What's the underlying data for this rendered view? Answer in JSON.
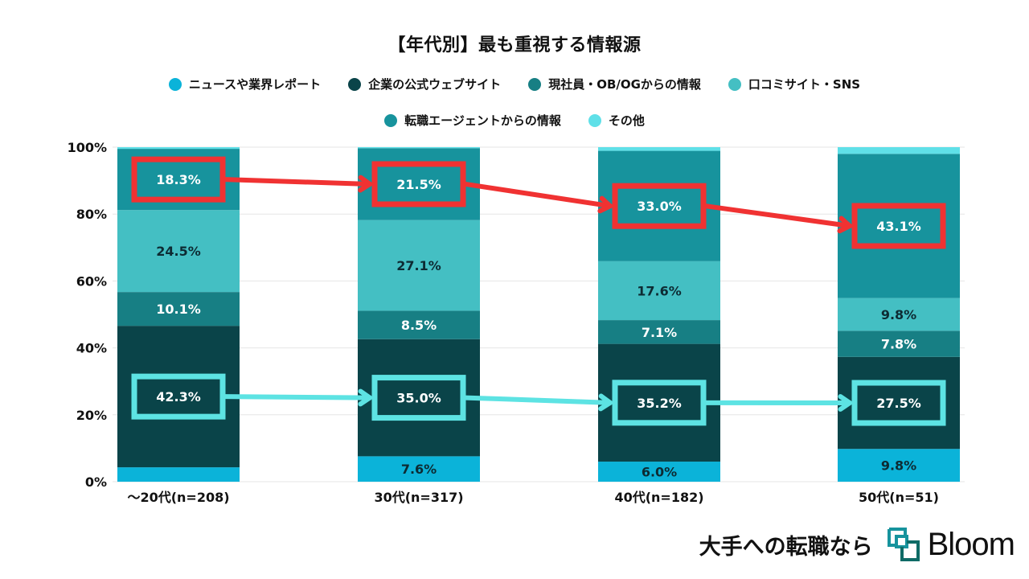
{
  "chart_data": {
    "type": "bar",
    "stacked": true,
    "percent": true,
    "title": "【年代別】最も重視する情報源",
    "categories": [
      "〜20代(n=208)",
      "30代(n=317)",
      "40代(n=182)",
      "50代(n=51)"
    ],
    "ylim": [
      0,
      100
    ],
    "yticks": [
      "0%",
      "20%",
      "40%",
      "60%",
      "80%",
      "100%"
    ],
    "ytick_values": [
      0,
      20,
      40,
      60,
      80,
      100
    ],
    "grid": true,
    "legend_position": "top",
    "series": [
      {
        "name": "ニュースや業界レポート",
        "color": "#0bb3d9",
        "label_color": "#0d2b33",
        "values": [
          4.3,
          7.6,
          6.0,
          9.8
        ],
        "labels": [
          "",
          "7.6%",
          "6.0%",
          "9.8%"
        ]
      },
      {
        "name": "企業の公式ウェブサイト",
        "color": "#0a4449",
        "label_color": "#ffffff",
        "values": [
          42.3,
          35.0,
          35.2,
          27.5
        ],
        "labels": [
          "42.3%",
          "35.0%",
          "35.2%",
          "27.5%"
        ]
      },
      {
        "name": "現社員・OB/OGからの情報",
        "color": "#177f84",
        "label_color": "#ffffff",
        "values": [
          10.1,
          8.5,
          7.1,
          7.8
        ],
        "labels": [
          "10.1%",
          "8.5%",
          "7.1%",
          "7.8%"
        ]
      },
      {
        "name": "口コミサイト・SNS",
        "color": "#44bfc3",
        "label_color": "#0d2b33",
        "values": [
          24.5,
          27.1,
          17.6,
          9.8
        ],
        "labels": [
          "24.5%",
          "27.1%",
          "17.6%",
          "9.8%"
        ]
      },
      {
        "name": "転職エージェントからの情報",
        "color": "#17939d",
        "label_color": "#ffffff",
        "values": [
          18.3,
          21.5,
          33.0,
          43.1
        ],
        "labels": [
          "18.3%",
          "21.5%",
          "33.0%",
          "43.1%"
        ]
      },
      {
        "name": "その他",
        "color": "#5fe0e8",
        "label_color": "#0d2b33",
        "values": [
          0.5,
          0.3,
          1.1,
          2.0
        ],
        "labels": [
          "",
          "",
          "",
          ""
        ]
      }
    ],
    "annotations": [
      {
        "series_index": 4,
        "style": "red-box-arrow",
        "color": "#f03232"
      },
      {
        "series_index": 1,
        "style": "cyan-box-arrow",
        "color": "#5de3e3"
      }
    ]
  },
  "legend_rows": [
    [
      0,
      1,
      2,
      3
    ],
    [
      4,
      5
    ]
  ],
  "footer": {
    "tagline": "大手への転職なら",
    "brand": "Bloom",
    "brand_color": "#17939d"
  }
}
